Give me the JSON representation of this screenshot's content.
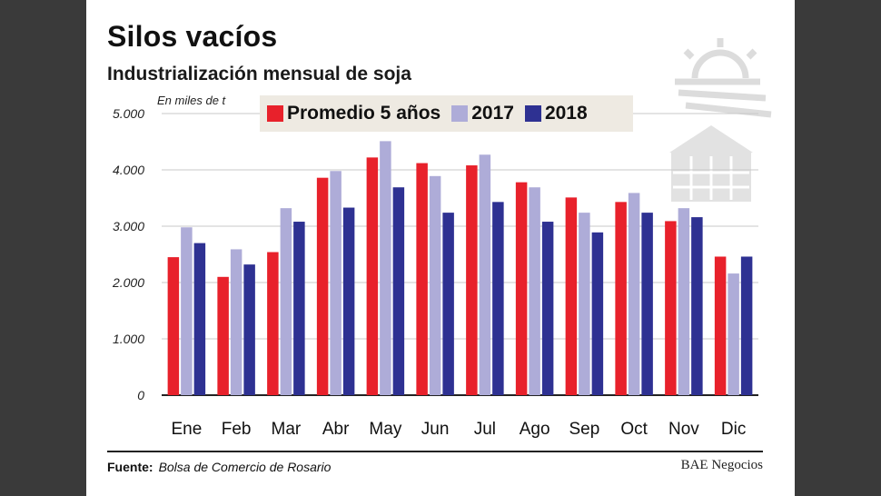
{
  "title": "Silos vacíos",
  "subtitle": "Industrialización mensual de soja",
  "unit_note": "En miles de t",
  "source_label": "Fuente:",
  "source_value": "Bolsa de Comercio de Rosario",
  "brand": "BAE Negocios",
  "colors": {
    "promedio": "#e8212b",
    "y2017": "#aeacd8",
    "y2018": "#2e3192",
    "frame": "#3a3a3a"
  },
  "chart_data": {
    "type": "bar",
    "title": "Silos vacíos",
    "subtitle": "Industrialización mensual de soja",
    "ylabel": "En miles de t",
    "ylim": [
      0,
      5000
    ],
    "yticks": [
      0,
      1000,
      2000,
      3000,
      4000,
      5000
    ],
    "ytick_labels": [
      "0",
      "1.000",
      "2.000",
      "3.000",
      "4.000",
      "5.000"
    ],
    "grid": true,
    "legend": "top",
    "categories": [
      "Ene",
      "Feb",
      "Mar",
      "Abr",
      "May",
      "Jun",
      "Jul",
      "Ago",
      "Sep",
      "Oct",
      "Nov",
      "Dic"
    ],
    "series": [
      {
        "name": "Promedio 5 años",
        "color": "#e8212b",
        "values": [
          2450,
          2100,
          2540,
          3860,
          4220,
          4120,
          4080,
          3780,
          3510,
          3430,
          3090,
          2460
        ]
      },
      {
        "name": "2017",
        "color": "#aeacd8",
        "values": [
          2980,
          2590,
          3320,
          3980,
          4510,
          3890,
          4270,
          3690,
          3240,
          3590,
          3320,
          2160
        ]
      },
      {
        "name": "2018",
        "color": "#2e3192",
        "values": [
          2700,
          2320,
          3080,
          3330,
          3690,
          3240,
          3430,
          3080,
          2890,
          3240,
          3160,
          2460
        ]
      }
    ]
  }
}
